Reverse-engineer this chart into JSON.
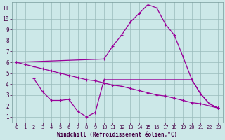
{
  "xlabel": "Windchill (Refroidissement éolien,°C)",
  "bg_color": "#cce8e8",
  "line_color": "#990099",
  "grid_color": "#99bbbb",
  "xlim": [
    -0.5,
    23.5
  ],
  "ylim": [
    0.5,
    11.5
  ],
  "xticks": [
    0,
    1,
    2,
    3,
    4,
    5,
    6,
    7,
    8,
    9,
    10,
    11,
    12,
    13,
    14,
    15,
    16,
    17,
    18,
    19,
    20,
    21,
    22,
    23
  ],
  "yticks": [
    1,
    2,
    3,
    4,
    5,
    6,
    7,
    8,
    9,
    10,
    11
  ],
  "line1_x": [
    0,
    1,
    2,
    3,
    4,
    5,
    6,
    7,
    8,
    9,
    10,
    11,
    12,
    13,
    14,
    15,
    16,
    17,
    18,
    19,
    20,
    21,
    22,
    23
  ],
  "line1_y": [
    6.0,
    5.8,
    5.6,
    5.4,
    5.2,
    5.0,
    4.8,
    4.6,
    4.4,
    4.3,
    4.1,
    3.9,
    3.8,
    3.6,
    3.4,
    3.2,
    3.0,
    2.9,
    2.7,
    2.5,
    2.3,
    2.2,
    2.0,
    1.8
  ],
  "line2_x": [
    0,
    10,
    11,
    12,
    13,
    14,
    15,
    16,
    17,
    18,
    19,
    20,
    21,
    22,
    23
  ],
  "line2_y": [
    6.0,
    6.3,
    7.5,
    8.5,
    9.7,
    10.5,
    11.3,
    11.0,
    9.5,
    8.5,
    6.5,
    4.4,
    3.1,
    2.2,
    1.8
  ],
  "line3_x": [
    2,
    3,
    4,
    5,
    6,
    7,
    8,
    9,
    10,
    20,
    21,
    22,
    23
  ],
  "line3_y": [
    4.5,
    3.3,
    2.5,
    2.5,
    2.6,
    1.5,
    1.0,
    1.4,
    4.4,
    4.4,
    3.1,
    2.2,
    1.8
  ]
}
